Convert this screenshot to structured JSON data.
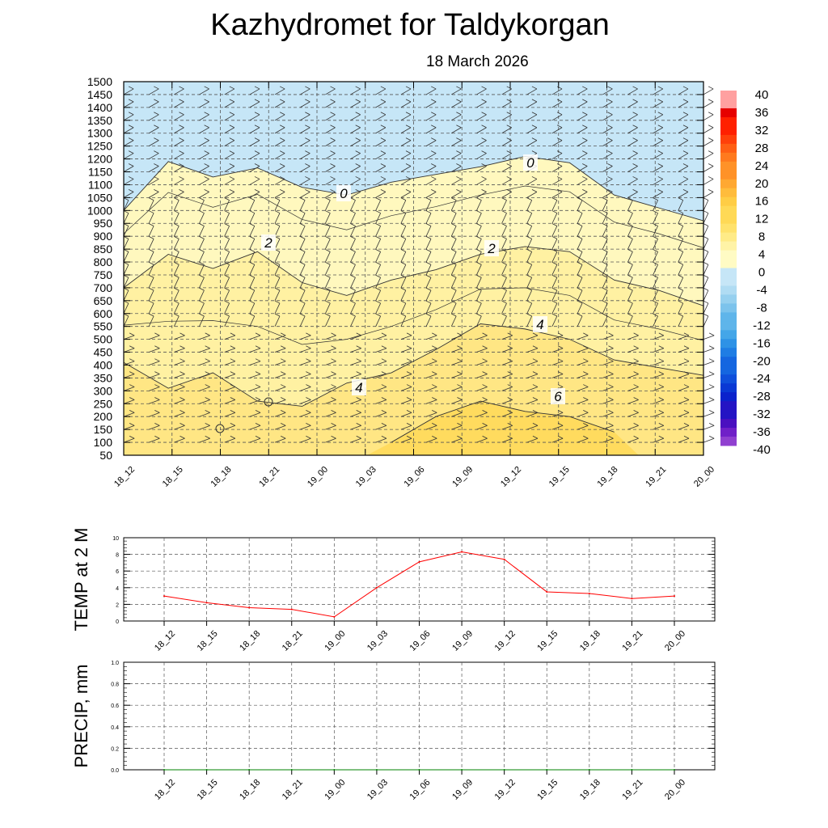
{
  "title": "Kazhydromet  for Taldykorgan",
  "subtitle": "18 March 2026",
  "colors": {
    "warm": [
      "#fffbc4",
      "#fff3a6",
      "#ffeb87",
      "#ffe26c",
      "#ffd956",
      "#ffcd45",
      "#ffbc3c",
      "#ffa832",
      "#ff9228",
      "#ff7a1e",
      "#ff5f14",
      "#ff400a",
      "#ff2000",
      "#e60000",
      "#c80000",
      "#ffa0a0"
    ],
    "cold": [
      "#c6e6f7",
      "#b0dcf3",
      "#96d0ef",
      "#7cc3ec",
      "#5fb5ea",
      "#44a6e8",
      "#2e92e6",
      "#1f7de4",
      "#1566e0",
      "#0f4fdb",
      "#0a38d4",
      "#0b22cc",
      "#2414c4",
      "#4a10c0",
      "#7020c8",
      "#9040d0"
    ],
    "temp_line": "#ff0000",
    "precip_line": "#008000"
  },
  "chart_data": [
    {
      "type": "contour",
      "name": "temperature_cross_section",
      "ylabel": "",
      "y_ticks": [
        50,
        100,
        150,
        200,
        250,
        300,
        350,
        400,
        450,
        500,
        550,
        600,
        650,
        700,
        750,
        800,
        850,
        900,
        950,
        1000,
        1050,
        1100,
        1150,
        1200,
        1250,
        1300,
        1350,
        1400,
        1450,
        1500
      ],
      "ylim": [
        50,
        1500
      ],
      "x_ticks": [
        "18_12",
        "18_15",
        "18_18",
        "18_21",
        "19_00",
        "19_03",
        "19_06",
        "19_09",
        "19_12",
        "19_15",
        "19_18",
        "19_21",
        "20_00"
      ],
      "zero_level": [
        1000,
        1190,
        1130,
        1165,
        1090,
        1060,
        1110,
        1140,
        1170,
        1210,
        1185,
        1060,
        1010,
        960
      ],
      "contours": [
        {
          "level": 0,
          "label": "0",
          "values": [
            1000,
            1190,
            1130,
            1165,
            1090,
            1060,
            1110,
            1140,
            1170,
            1210,
            1185,
            1060,
            1010,
            960
          ]
        },
        {
          "level": 2,
          "label": "2",
          "values": [
            700,
            830,
            775,
            840,
            720,
            670,
            730,
            770,
            830,
            860,
            840,
            730,
            690,
            630
          ]
        },
        {
          "level": 4,
          "label": "4",
          "values": [
            410,
            310,
            370,
            260,
            240,
            330,
            370,
            460,
            560,
            540,
            500,
            420,
            390,
            360
          ]
        },
        {
          "level": 6,
          "label": "6",
          "values": [
            null,
            null,
            null,
            null,
            null,
            null,
            100,
            200,
            260,
            220,
            200,
            140,
            null,
            null
          ]
        }
      ],
      "contour_labels": [
        "0",
        "0",
        "2",
        "2",
        "4",
        "4",
        "6"
      ],
      "colorbar": {
        "labels": [
          "40",
          "36",
          "32",
          "28",
          "24",
          "20",
          "16",
          "12",
          "8",
          "4",
          "0",
          "-4",
          "-8",
          "-12",
          "-16",
          "-20",
          "-24",
          "-28",
          "-32",
          "-36",
          "-40"
        ]
      }
    },
    {
      "type": "line",
      "name": "temp_2m",
      "ylabel": "TEMP at 2 M",
      "ylim": [
        0,
        10
      ],
      "y_ticks": [
        "0",
        "2",
        "4",
        "6",
        "8",
        "10"
      ],
      "categories": [
        "18_12",
        "18_15",
        "18_18",
        "18_21",
        "19_00",
        "19_03",
        "19_06",
        "19_09",
        "19_12",
        "19_15",
        "19_18",
        "19_21",
        "20_00"
      ],
      "values": [
        3.0,
        2.2,
        1.6,
        1.4,
        0.5,
        4.0,
        7.1,
        8.3,
        7.4,
        3.5,
        3.3,
        2.7,
        3.0
      ]
    },
    {
      "type": "line",
      "name": "precip",
      "ylabel": "PRECIP, mm",
      "ylim": [
        0,
        1
      ],
      "y_ticks": [
        "0.0",
        "0.2",
        "0.4",
        "0.6",
        "0.8",
        "1.0"
      ],
      "categories": [
        "18_12",
        "18_15",
        "18_18",
        "18_21",
        "19_00",
        "19_03",
        "19_06",
        "19_09",
        "19_12",
        "19_15",
        "19_18",
        "19_21",
        "20_00"
      ],
      "values": [
        0,
        0,
        0,
        0,
        0,
        0,
        0,
        0,
        0,
        0,
        0,
        0,
        0
      ]
    }
  ]
}
